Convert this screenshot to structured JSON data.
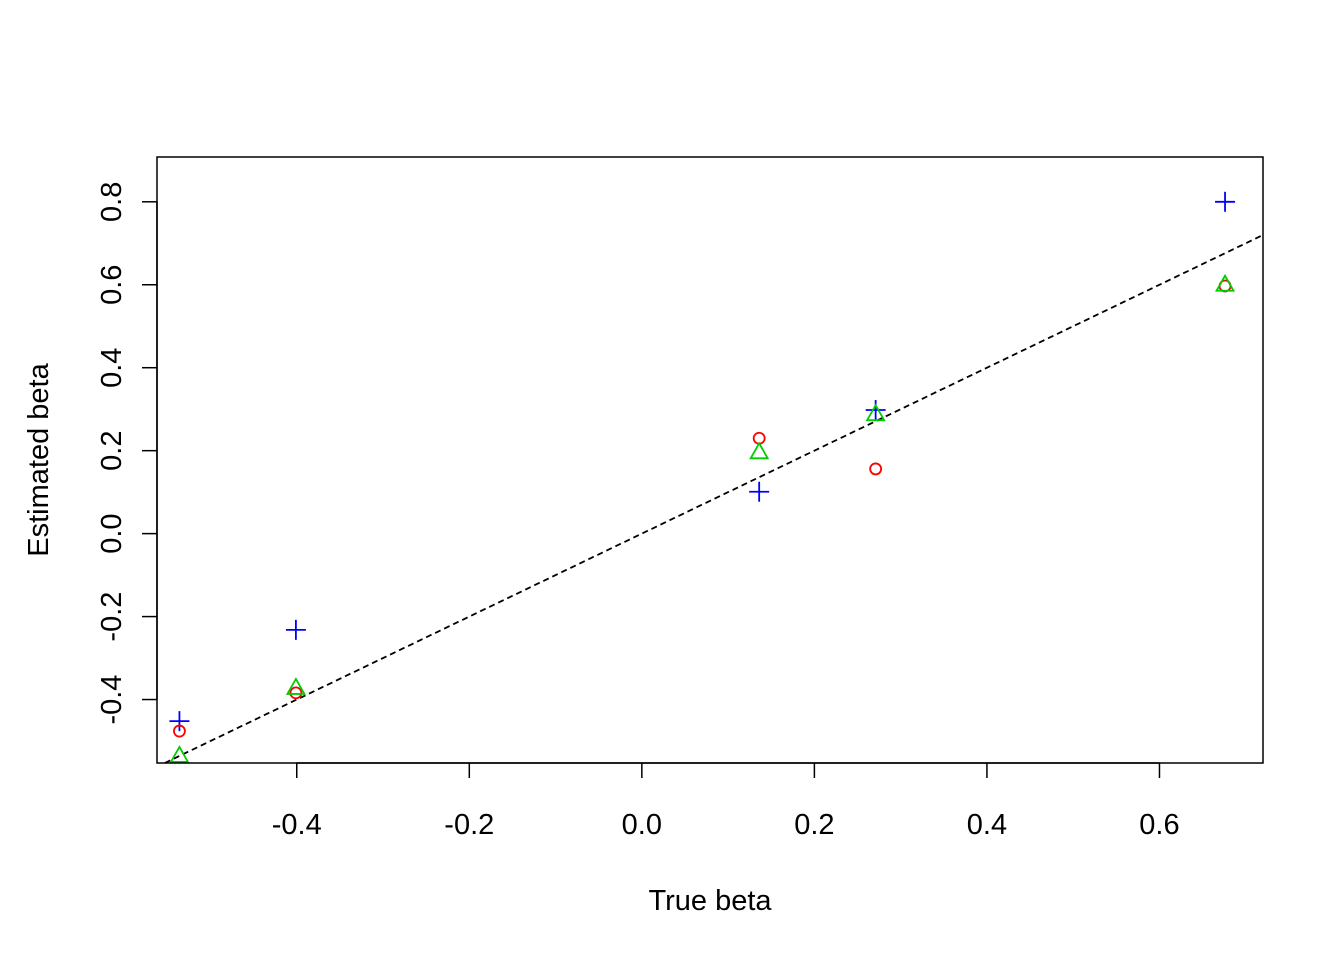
{
  "chart_data": {
    "type": "scatter",
    "title": "",
    "xlabel": "True beta",
    "ylabel": "Estimated beta",
    "xlim": [
      -0.562,
      0.72
    ],
    "ylim": [
      -0.553,
      0.908
    ],
    "x_ticks": [
      -0.4,
      -0.2,
      0.0,
      0.2,
      0.4,
      0.6
    ],
    "x_tick_labels": [
      "-0.4",
      "-0.2",
      "0.0",
      "0.2",
      "0.4",
      "0.6"
    ],
    "y_ticks": [
      -0.4,
      -0.2,
      0.0,
      0.2,
      0.4,
      0.6,
      0.8
    ],
    "y_tick_labels": [
      "-0.4",
      "-0.2",
      "0.0",
      "0.2",
      "0.4",
      "0.6",
      "0.8"
    ],
    "grid": false,
    "legend": "none",
    "reference_line": {
      "slope": 1,
      "intercept": 0,
      "style": "dashed",
      "color": "#000000"
    },
    "series": [
      {
        "marker": "plus",
        "color": "#0000ff",
        "points": [
          {
            "x": -0.536,
            "y": -0.452
          },
          {
            "x": -0.401,
            "y": -0.232
          },
          {
            "x": 0.136,
            "y": 0.101
          },
          {
            "x": 0.271,
            "y": 0.298
          },
          {
            "x": 0.676,
            "y": 0.8
          }
        ]
      },
      {
        "marker": "circle",
        "color": "#ff0000",
        "points": [
          {
            "x": -0.536,
            "y": -0.476
          },
          {
            "x": -0.401,
            "y": -0.384
          },
          {
            "x": 0.136,
            "y": 0.23
          },
          {
            "x": 0.271,
            "y": 0.156
          },
          {
            "x": 0.676,
            "y": 0.597
          }
        ]
      },
      {
        "marker": "triangle",
        "color": "#00cd00",
        "points": [
          {
            "x": -0.536,
            "y": -0.536
          },
          {
            "x": -0.401,
            "y": -0.372
          },
          {
            "x": 0.136,
            "y": 0.196
          },
          {
            "x": 0.271,
            "y": 0.288
          },
          {
            "x": 0.676,
            "y": 0.6
          }
        ]
      }
    ]
  }
}
